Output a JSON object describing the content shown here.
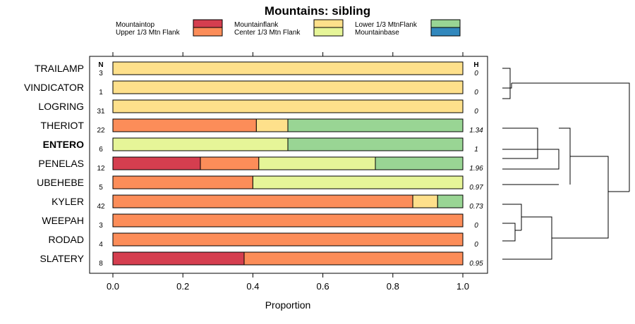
{
  "chart_data": {
    "type": "bar",
    "orientation": "horizontal",
    "stacked": true,
    "title": "Mountains: sibling",
    "xlabel": "Proportion",
    "xlim": [
      0,
      1
    ],
    "xticks": [
      "0.0",
      "0.2",
      "0.4",
      "0.6",
      "0.8",
      "1.0"
    ],
    "n_header": "N",
    "h_header": "H",
    "highlight": "ENTERO",
    "legend": [
      {
        "name": "Mountaintop",
        "color": "#d53e4f"
      },
      {
        "name": "Upper 1/3 Mtn Flank",
        "color": "#fc8d59"
      },
      {
        "name": "Mountainflank",
        "color": "#fee08b"
      },
      {
        "name": "Center 1/3 Mtn Flank",
        "color": "#e6f598"
      },
      {
        "name": "Lower 1/3 MtnFlank",
        "color": "#99d594"
      },
      {
        "name": "Mountainbase",
        "color": "#3288bd"
      }
    ],
    "rows": [
      {
        "label": "TRAILAMP",
        "n": "3",
        "h": "0",
        "segments": [
          0,
          0,
          1,
          0,
          0,
          0
        ]
      },
      {
        "label": "VINDICATOR",
        "n": "1",
        "h": "0",
        "segments": [
          0,
          0,
          1,
          0,
          0,
          0
        ]
      },
      {
        "label": "LOGRING",
        "n": "31",
        "h": "0",
        "segments": [
          0,
          0,
          1,
          0,
          0,
          0
        ]
      },
      {
        "label": "THERIOT",
        "n": "22",
        "h": "1.34",
        "segments": [
          0,
          0.41,
          0.09,
          0,
          0.5,
          0
        ]
      },
      {
        "label": "ENTERO",
        "n": "6",
        "h": "1",
        "segments": [
          0,
          0,
          0,
          0.5,
          0.5,
          0
        ]
      },
      {
        "label": "PENELAS",
        "n": "12",
        "h": "1.96",
        "segments": [
          0.25,
          0.167,
          0,
          0.333,
          0.25,
          0
        ]
      },
      {
        "label": "UBEHEBE",
        "n": "5",
        "h": "0.97",
        "segments": [
          0,
          0.4,
          0,
          0.6,
          0,
          0
        ]
      },
      {
        "label": "KYLER",
        "n": "42",
        "h": "0.73",
        "segments": [
          0,
          0.857,
          0.071,
          0,
          0.072,
          0
        ]
      },
      {
        "label": "WEEPAH",
        "n": "3",
        "h": "0",
        "segments": [
          0,
          1,
          0,
          0,
          0,
          0
        ]
      },
      {
        "label": "RODAD",
        "n": "4",
        "h": "0",
        "segments": [
          0,
          1,
          0,
          0,
          0,
          0
        ]
      },
      {
        "label": "SLATERY",
        "n": "8",
        "h": "0.95",
        "segments": [
          0.375,
          0.625,
          0,
          0,
          0,
          0
        ]
      }
    ]
  }
}
